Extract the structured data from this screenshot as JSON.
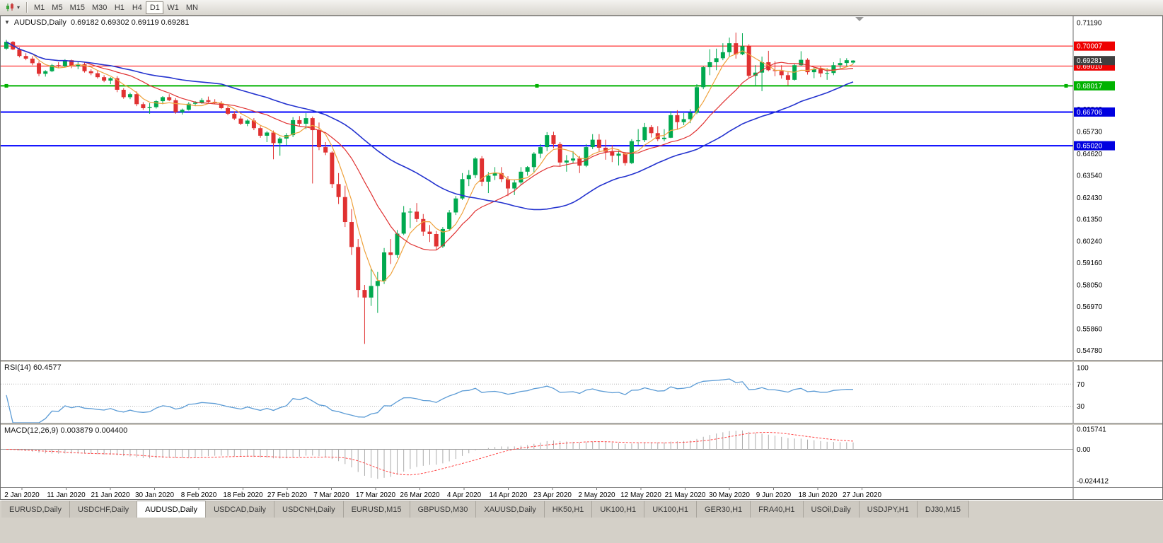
{
  "icons": {
    "caret": "▾",
    "one_click_arrow": "▼"
  },
  "toolbar": {
    "timeframes": [
      {
        "label": "M1",
        "active": false
      },
      {
        "label": "M5",
        "active": false
      },
      {
        "label": "M15",
        "active": false
      },
      {
        "label": "M30",
        "active": false
      },
      {
        "label": "H1",
        "active": false
      },
      {
        "label": "H4",
        "active": false
      },
      {
        "label": "D1",
        "active": true
      },
      {
        "label": "W1",
        "active": false
      },
      {
        "label": "MN",
        "active": false
      }
    ]
  },
  "chart": {
    "title_line": "AUDUSD,Daily  0.69182 0.69302 0.69119 0.69281",
    "symbol": "AUDUSD",
    "period": "Daily",
    "ohlc": {
      "open": "0.69182",
      "high": "0.69302",
      "low": "0.69119",
      "close": "0.69281"
    },
    "colors": {
      "candle_up": "#00A94F",
      "candle_down": "#E03131",
      "ma_fast": "#EFA23C",
      "ma_mid": "#E03131",
      "ma_slow": "#2433CF",
      "rsi_line": "#5B9BD5",
      "macd_hist": "#ABABAB",
      "macd_signal": "#FF4444",
      "hline_red": "#FF0000",
      "hline_green": "#00B200",
      "hline_blue": "#0000FF",
      "tag_current_bg": "#3F3F3F"
    },
    "y_axis_labels": [
      "0.71190",
      "0.70080",
      "0.68970",
      "0.67920",
      "0.66840",
      "0.65730",
      "0.64620",
      "0.63540",
      "0.62430",
      "0.61350",
      "0.60240",
      "0.59160",
      "0.58050",
      "0.56970",
      "0.55860",
      "0.54780"
    ],
    "price_tags": [
      {
        "name": "resistance-1",
        "label": "0.70007",
        "price": 0.70007,
        "color": "#EE0000"
      },
      {
        "name": "resistance-2",
        "label": "0.69010",
        "price": 0.6901,
        "color": "#EE0000"
      },
      {
        "name": "support-green",
        "label": "0.68017",
        "price": 0.68017,
        "color": "#00B200"
      },
      {
        "name": "support-blue-1",
        "label": "0.66706",
        "price": 0.66706,
        "color": "#0000E0"
      },
      {
        "name": "support-blue-2",
        "label": "0.65020",
        "price": 0.6502,
        "color": "#0000E0"
      },
      {
        "name": "current-price",
        "label": "0.69281",
        "price": 0.69281,
        "color": "#3F3F3F"
      }
    ],
    "hlines": [
      {
        "name": "resistance-1",
        "price": 0.70007,
        "color": "#FF0000",
        "width": 1,
        "selected": false
      },
      {
        "name": "resistance-2",
        "price": 0.6901,
        "color": "#FF0000",
        "width": 1,
        "selected": false
      },
      {
        "name": "support-green",
        "price": 0.68017,
        "color": "#00B200",
        "width": 2,
        "selected": true
      },
      {
        "name": "support-blue-1",
        "price": 0.66706,
        "color": "#0000FF",
        "width": 2,
        "selected": false
      },
      {
        "name": "support-blue-2",
        "price": 0.6502,
        "color": "#0000FF",
        "width": 2,
        "selected": false
      }
    ]
  },
  "rsi": {
    "label_line": "RSI(14) 60.4577",
    "name": "RSI",
    "period": 14,
    "value": "60.4577",
    "axis_labels": [
      "100",
      "70",
      "30"
    ],
    "levels_dotted": [
      70,
      30
    ]
  },
  "macd": {
    "label_line": "MACD(12,26,9) 0.003879 0.004400",
    "name": "MACD",
    "main_value": "0.003879",
    "signal_value": "0.004400",
    "axis_labels": [
      "0.015741",
      "0.00",
      "-0.024412"
    ]
  },
  "tabs": [
    {
      "label": "EURUSD,Daily",
      "active": false
    },
    {
      "label": "USDCHF,Daily",
      "active": false
    },
    {
      "label": "AUDUSD,Daily",
      "active": true
    },
    {
      "label": "USDCAD,Daily",
      "active": false
    },
    {
      "label": "USDCNH,Daily",
      "active": false
    },
    {
      "label": "EURUSD,M15",
      "active": false
    },
    {
      "label": "GBPUSD,M30",
      "active": false
    },
    {
      "label": "XAUUSD,Daily",
      "active": false
    },
    {
      "label": "HK50,H1",
      "active": false
    },
    {
      "label": "UK100,H1",
      "active": false
    },
    {
      "label": "UK100,H1",
      "active": false
    },
    {
      "label": "GER30,H1",
      "active": false
    },
    {
      "label": "FRA40,H1",
      "active": false
    },
    {
      "label": "USOil,Daily",
      "active": false
    },
    {
      "label": "USDJPY,H1",
      "active": false
    },
    {
      "label": "DJ30,M15",
      "active": false
    }
  ],
  "chart_data": {
    "type": "candlestick",
    "symbol": "AUDUSD",
    "timeframe": "D1",
    "y_range": [
      0.543,
      0.715
    ],
    "ma_periods": [
      5,
      13,
      34
    ],
    "rsi_period": 14,
    "macd_params": [
      12,
      26,
      9
    ],
    "x_labels": [
      "2 Jan 2020",
      "11 Jan 2020",
      "21 Jan 2020",
      "30 Jan 2020",
      "8 Feb 2020",
      "18 Feb 2020",
      "27 Feb 2020",
      "7 Mar 2020",
      "17 Mar 2020",
      "26 Mar 2020",
      "4 Apr 2020",
      "14 Apr 2020",
      "23 Apr 2020",
      "2 May 2020",
      "12 May 2020",
      "21 May 2020",
      "30 May 2020",
      "9 Jun 2020",
      "18 Jun 2020",
      "27 Jun 2020"
    ],
    "candles": [
      [
        0.6988,
        0.7032,
        0.6982,
        0.7022
      ],
      [
        0.7022,
        0.7026,
        0.698,
        0.6984
      ],
      [
        0.6984,
        0.6994,
        0.6944,
        0.6951
      ],
      [
        0.6951,
        0.6965,
        0.693,
        0.6938
      ],
      [
        0.6938,
        0.695,
        0.6905,
        0.6915
      ],
      [
        0.6915,
        0.6925,
        0.685,
        0.6862
      ],
      [
        0.6862,
        0.688,
        0.6848,
        0.6875
      ],
      [
        0.6875,
        0.6912,
        0.687,
        0.6905
      ],
      [
        0.6905,
        0.692,
        0.689,
        0.69
      ],
      [
        0.69,
        0.6935,
        0.6895,
        0.693
      ],
      [
        0.693,
        0.6933,
        0.689,
        0.69
      ],
      [
        0.69,
        0.692,
        0.6885,
        0.691
      ],
      [
        0.691,
        0.6918,
        0.6868,
        0.6875
      ],
      [
        0.6875,
        0.6885,
        0.6855,
        0.6865
      ],
      [
        0.6865,
        0.688,
        0.6838,
        0.6845
      ],
      [
        0.6845,
        0.6855,
        0.682,
        0.6828
      ],
      [
        0.6828,
        0.6845,
        0.681,
        0.684
      ],
      [
        0.684,
        0.685,
        0.677,
        0.6782
      ],
      [
        0.6782,
        0.679,
        0.6737,
        0.6745
      ],
      [
        0.6745,
        0.6768,
        0.6735,
        0.676
      ],
      [
        0.676,
        0.6774,
        0.67,
        0.671
      ],
      [
        0.671,
        0.672,
        0.6682,
        0.669
      ],
      [
        0.669,
        0.6715,
        0.6662,
        0.6695
      ],
      [
        0.6695,
        0.673,
        0.6688,
        0.6725
      ],
      [
        0.6725,
        0.675,
        0.671,
        0.6745
      ],
      [
        0.6745,
        0.676,
        0.6725,
        0.673
      ],
      [
        0.673,
        0.674,
        0.6662,
        0.667
      ],
      [
        0.667,
        0.6688,
        0.6658,
        0.6682
      ],
      [
        0.6682,
        0.672,
        0.6678,
        0.6712
      ],
      [
        0.6712,
        0.6725,
        0.67,
        0.6718
      ],
      [
        0.6718,
        0.674,
        0.6712,
        0.673
      ],
      [
        0.673,
        0.6748,
        0.6718,
        0.6722
      ],
      [
        0.6722,
        0.6735,
        0.671,
        0.6715
      ],
      [
        0.6715,
        0.6725,
        0.6685,
        0.669
      ],
      [
        0.669,
        0.67,
        0.6655,
        0.6662
      ],
      [
        0.6662,
        0.6675,
        0.663,
        0.6638
      ],
      [
        0.6638,
        0.665,
        0.6605,
        0.6612
      ],
      [
        0.6612,
        0.6635,
        0.66,
        0.6628
      ],
      [
        0.6628,
        0.664,
        0.658,
        0.659
      ],
      [
        0.659,
        0.66,
        0.6542,
        0.6552
      ],
      [
        0.6552,
        0.6575,
        0.652,
        0.6568
      ],
      [
        0.6568,
        0.6578,
        0.6434,
        0.6515
      ],
      [
        0.6515,
        0.6545,
        0.6452,
        0.6538
      ],
      [
        0.6538,
        0.6565,
        0.6505,
        0.6555
      ],
      [
        0.6555,
        0.6645,
        0.6545,
        0.663
      ],
      [
        0.663,
        0.665,
        0.66,
        0.6612
      ],
      [
        0.6612,
        0.6665,
        0.6585,
        0.664
      ],
      [
        0.664,
        0.6648,
        0.6313,
        0.658
      ],
      [
        0.658,
        0.6618,
        0.648,
        0.6495
      ],
      [
        0.6495,
        0.652,
        0.6455,
        0.6468
      ],
      [
        0.6468,
        0.6475,
        0.629,
        0.631
      ],
      [
        0.631,
        0.6365,
        0.621,
        0.6245
      ],
      [
        0.6245,
        0.6302,
        0.6095,
        0.612
      ],
      [
        0.612,
        0.6185,
        0.5955,
        0.5995
      ],
      [
        0.5995,
        0.6035,
        0.5743,
        0.578
      ],
      [
        0.578,
        0.5805,
        0.551,
        0.5742
      ],
      [
        0.5742,
        0.5885,
        0.57,
        0.58
      ],
      [
        0.58,
        0.587,
        0.5665,
        0.5825
      ],
      [
        0.5825,
        0.599,
        0.581,
        0.5968
      ],
      [
        0.5968,
        0.6035,
        0.591,
        0.5955
      ],
      [
        0.5955,
        0.608,
        0.594,
        0.6062
      ],
      [
        0.6062,
        0.62,
        0.6055,
        0.6168
      ],
      [
        0.6168,
        0.619,
        0.609,
        0.6172
      ],
      [
        0.6172,
        0.6215,
        0.612,
        0.6135
      ],
      [
        0.6135,
        0.616,
        0.605,
        0.6072
      ],
      [
        0.6072,
        0.6105,
        0.602,
        0.606
      ],
      [
        0.606,
        0.6075,
        0.5982,
        0.5998
      ],
      [
        0.5998,
        0.6095,
        0.599,
        0.6085
      ],
      [
        0.6085,
        0.618,
        0.6075,
        0.6168
      ],
      [
        0.6168,
        0.625,
        0.6155,
        0.6238
      ],
      [
        0.6238,
        0.6365,
        0.623,
        0.6335
      ],
      [
        0.6335,
        0.638,
        0.63,
        0.6355
      ],
      [
        0.6355,
        0.6445,
        0.634,
        0.6438
      ],
      [
        0.6438,
        0.645,
        0.63,
        0.6322
      ],
      [
        0.6322,
        0.637,
        0.6265,
        0.6352
      ],
      [
        0.6352,
        0.6395,
        0.633,
        0.6365
      ],
      [
        0.6365,
        0.6395,
        0.632,
        0.6335
      ],
      [
        0.6335,
        0.635,
        0.625,
        0.6288
      ],
      [
        0.6288,
        0.633,
        0.6255,
        0.6318
      ],
      [
        0.6318,
        0.6395,
        0.6305,
        0.6372
      ],
      [
        0.6372,
        0.64,
        0.6352,
        0.6395
      ],
      [
        0.6395,
        0.647,
        0.637,
        0.6462
      ],
      [
        0.6462,
        0.651,
        0.644,
        0.6495
      ],
      [
        0.6495,
        0.657,
        0.6475,
        0.6555
      ],
      [
        0.6555,
        0.6572,
        0.649,
        0.651
      ],
      [
        0.651,
        0.652,
        0.64,
        0.6418
      ],
      [
        0.6418,
        0.6455,
        0.6372,
        0.6428
      ],
      [
        0.6428,
        0.6475,
        0.6415,
        0.6438
      ],
      [
        0.6438,
        0.645,
        0.6365,
        0.6402
      ],
      [
        0.6402,
        0.651,
        0.6395,
        0.6495
      ],
      [
        0.6495,
        0.656,
        0.6485,
        0.6532
      ],
      [
        0.6532,
        0.656,
        0.6475,
        0.6492
      ],
      [
        0.6492,
        0.6532,
        0.6432,
        0.6472
      ],
      [
        0.6472,
        0.6505,
        0.642,
        0.6452
      ],
      [
        0.6452,
        0.6478,
        0.6403,
        0.6462
      ],
      [
        0.6462,
        0.647,
        0.6402,
        0.6415
      ],
      [
        0.6415,
        0.6535,
        0.641,
        0.6525
      ],
      [
        0.6525,
        0.6585,
        0.6505,
        0.653
      ],
      [
        0.653,
        0.6616,
        0.652,
        0.6595
      ],
      [
        0.6595,
        0.6605,
        0.6543,
        0.6565
      ],
      [
        0.6565,
        0.66,
        0.6525,
        0.6535
      ],
      [
        0.6535,
        0.6585,
        0.6525,
        0.6542
      ],
      [
        0.6542,
        0.6675,
        0.654,
        0.6655
      ],
      [
        0.6655,
        0.668,
        0.6585,
        0.662
      ],
      [
        0.662,
        0.6665,
        0.6605,
        0.6635
      ],
      [
        0.6635,
        0.6685,
        0.6615,
        0.6667
      ],
      [
        0.6667,
        0.681,
        0.666,
        0.6795
      ],
      [
        0.6795,
        0.69,
        0.6785,
        0.6895
      ],
      [
        0.6895,
        0.6985,
        0.6855,
        0.692
      ],
      [
        0.692,
        0.6988,
        0.688,
        0.694
      ],
      [
        0.694,
        0.7015,
        0.693,
        0.697
      ],
      [
        0.697,
        0.7043,
        0.6945,
        0.7015
      ],
      [
        0.7015,
        0.7068,
        0.6938,
        0.696
      ],
      [
        0.696,
        0.7065,
        0.6955,
        0.7
      ],
      [
        0.7,
        0.701,
        0.684,
        0.6852
      ],
      [
        0.6852,
        0.6905,
        0.68,
        0.6868
      ],
      [
        0.6868,
        0.6948,
        0.6775,
        0.692
      ],
      [
        0.692,
        0.6977,
        0.6875,
        0.688
      ],
      [
        0.688,
        0.6925,
        0.685,
        0.6876
      ],
      [
        0.6876,
        0.6905,
        0.6838,
        0.6855
      ],
      [
        0.6855,
        0.687,
        0.6805,
        0.6832
      ],
      [
        0.6832,
        0.691,
        0.6828,
        0.6905
      ],
      [
        0.6905,
        0.6975,
        0.6902,
        0.6932
      ],
      [
        0.6932,
        0.694,
        0.6858,
        0.687
      ],
      [
        0.687,
        0.6895,
        0.684,
        0.6885
      ],
      [
        0.6885,
        0.6902,
        0.6845,
        0.6864
      ],
      [
        0.6864,
        0.689,
        0.6832,
        0.6866
      ],
      [
        0.6866,
        0.692,
        0.6855,
        0.6905
      ],
      [
        0.6905,
        0.694,
        0.689,
        0.6916
      ],
      [
        0.6916,
        0.694,
        0.69,
        0.693
      ],
      [
        0.69182,
        0.69302,
        0.69119,
        0.69281
      ]
    ]
  }
}
